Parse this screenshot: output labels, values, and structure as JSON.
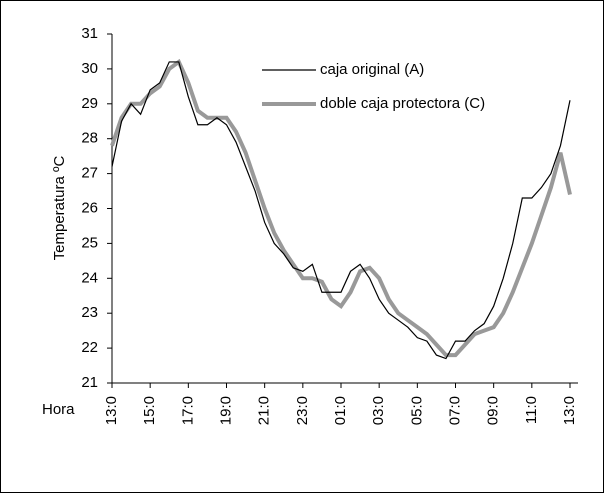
{
  "chart_data": {
    "type": "line",
    "y_label": "Temperatura ºC",
    "x_label": "Hora",
    "categories": [
      "13:0",
      null,
      null,
      null,
      "15:0",
      null,
      null,
      null,
      "17:0",
      null,
      null,
      null,
      "19:0",
      null,
      null,
      null,
      "21:0",
      null,
      null,
      null,
      "23:0",
      null,
      null,
      null,
      "01:0",
      null,
      null,
      null,
      "03:0",
      null,
      null,
      null,
      "05:0",
      null,
      null,
      null,
      "07:0",
      null,
      null,
      null,
      "09:0",
      null,
      null,
      null,
      "11:0",
      null,
      null,
      null,
      "13:0"
    ],
    "series": [
      {
        "name": "caja original (A)",
        "color": "#000000",
        "width": 1.2,
        "values": [
          27.2,
          28.5,
          29.0,
          28.7,
          29.4,
          29.6,
          30.2,
          30.2,
          29.2,
          28.4,
          28.4,
          28.6,
          28.4,
          27.9,
          27.2,
          26.5,
          25.6,
          25.0,
          24.7,
          24.3,
          24.2,
          24.4,
          23.6,
          23.6,
          23.6,
          24.2,
          24.4,
          24.0,
          23.4,
          23.0,
          22.8,
          22.6,
          22.3,
          22.2,
          21.8,
          21.7,
          22.2,
          22.2,
          22.5,
          22.7,
          23.2,
          24.0,
          25.0,
          26.3,
          26.3,
          26.6,
          27.0,
          27.8,
          29.1
        ]
      },
      {
        "name": "doble caja protectora (C)",
        "color": "#999999",
        "width": 4,
        "values": [
          27.8,
          28.6,
          29.0,
          29.0,
          29.3,
          29.5,
          30.0,
          30.2,
          29.6,
          28.8,
          28.6,
          28.6,
          28.6,
          28.2,
          27.6,
          26.8,
          26.0,
          25.3,
          24.8,
          24.4,
          24.0,
          24.0,
          23.9,
          23.4,
          23.2,
          23.6,
          24.2,
          24.3,
          24.0,
          23.4,
          23.0,
          22.8,
          22.6,
          22.4,
          22.1,
          21.8,
          21.8,
          22.1,
          22.4,
          22.5,
          22.6,
          23.0,
          23.6,
          24.3,
          25.0,
          25.8,
          26.6,
          27.6,
          26.4
        ]
      }
    ],
    "ylim": [
      21,
      31
    ],
    "yticks": [
      21,
      22,
      23,
      24,
      25,
      26,
      27,
      28,
      29,
      30,
      31
    ],
    "grid": false,
    "legend": "top-right"
  }
}
